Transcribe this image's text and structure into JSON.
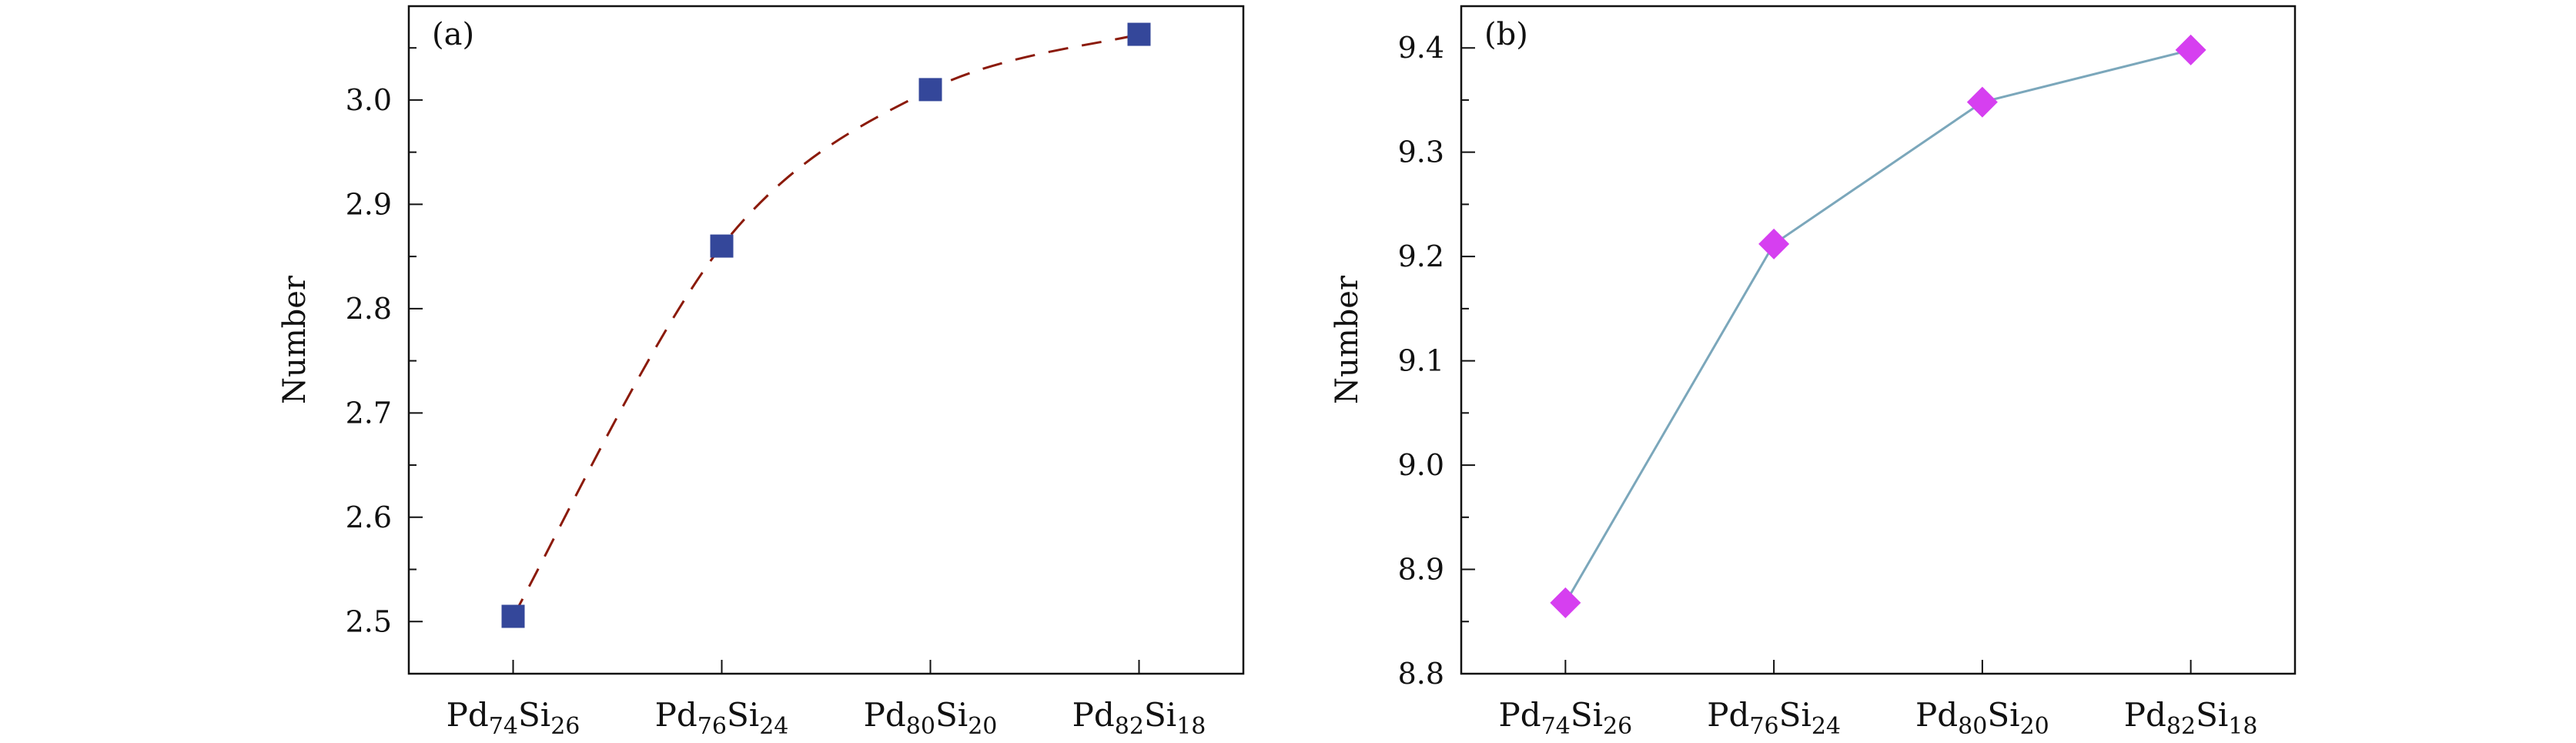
{
  "figure": {
    "panels": [
      "(a)",
      "(b)"
    ]
  },
  "colors": {
    "axis": "#111111",
    "panel_a_marker": "#34479a",
    "panel_a_line": "#8b1a0a",
    "panel_b_marker": "#d63ff0",
    "panel_b_line": "#7ba7bb"
  },
  "chart_data": [
    {
      "type": "line",
      "panel_label": "(a)",
      "title": "",
      "xlabel": "",
      "ylabel": "Number",
      "categories": [
        {
          "base": "Pd",
          "sub1": "74",
          "mid": "Si",
          "sub2": "26"
        },
        {
          "base": "Pd",
          "sub1": "76",
          "mid": "Si",
          "sub2": "24"
        },
        {
          "base": "Pd",
          "sub1": "80",
          "mid": "Si",
          "sub2": "20"
        },
        {
          "base": "Pd",
          "sub1": "82",
          "mid": "Si",
          "sub2": "18"
        }
      ],
      "values": [
        2.505,
        2.86,
        3.01,
        3.063
      ],
      "ylim": [
        2.45,
        3.09
      ],
      "yticks": [
        "2.5",
        "2.6",
        "2.7",
        "2.8",
        "2.9",
        "3.0"
      ],
      "ytick_values": [
        2.5,
        2.6,
        2.7,
        2.8,
        2.9,
        3.0
      ],
      "marker": "square",
      "line_style": "dashed",
      "legend": "none",
      "grid": false
    },
    {
      "type": "line",
      "panel_label": "(b)",
      "title": "",
      "xlabel": "",
      "ylabel": "Number",
      "categories": [
        {
          "base": "Pd",
          "sub1": "74",
          "mid": "Si",
          "sub2": "26"
        },
        {
          "base": "Pd",
          "sub1": "76",
          "mid": "Si",
          "sub2": "24"
        },
        {
          "base": "Pd",
          "sub1": "80",
          "mid": "Si",
          "sub2": "20"
        },
        {
          "base": "Pd",
          "sub1": "82",
          "mid": "Si",
          "sub2": "18"
        }
      ],
      "values": [
        8.868,
        9.212,
        9.348,
        9.398
      ],
      "ylim": [
        8.8,
        9.44
      ],
      "yticks": [
        "8.8",
        "8.9",
        "9.0",
        "9.1",
        "9.2",
        "9.3",
        "9.4"
      ],
      "ytick_values": [
        8.8,
        8.9,
        9.0,
        9.1,
        9.2,
        9.3,
        9.4
      ],
      "marker": "diamond",
      "line_style": "solid",
      "legend": "none",
      "grid": false
    }
  ]
}
